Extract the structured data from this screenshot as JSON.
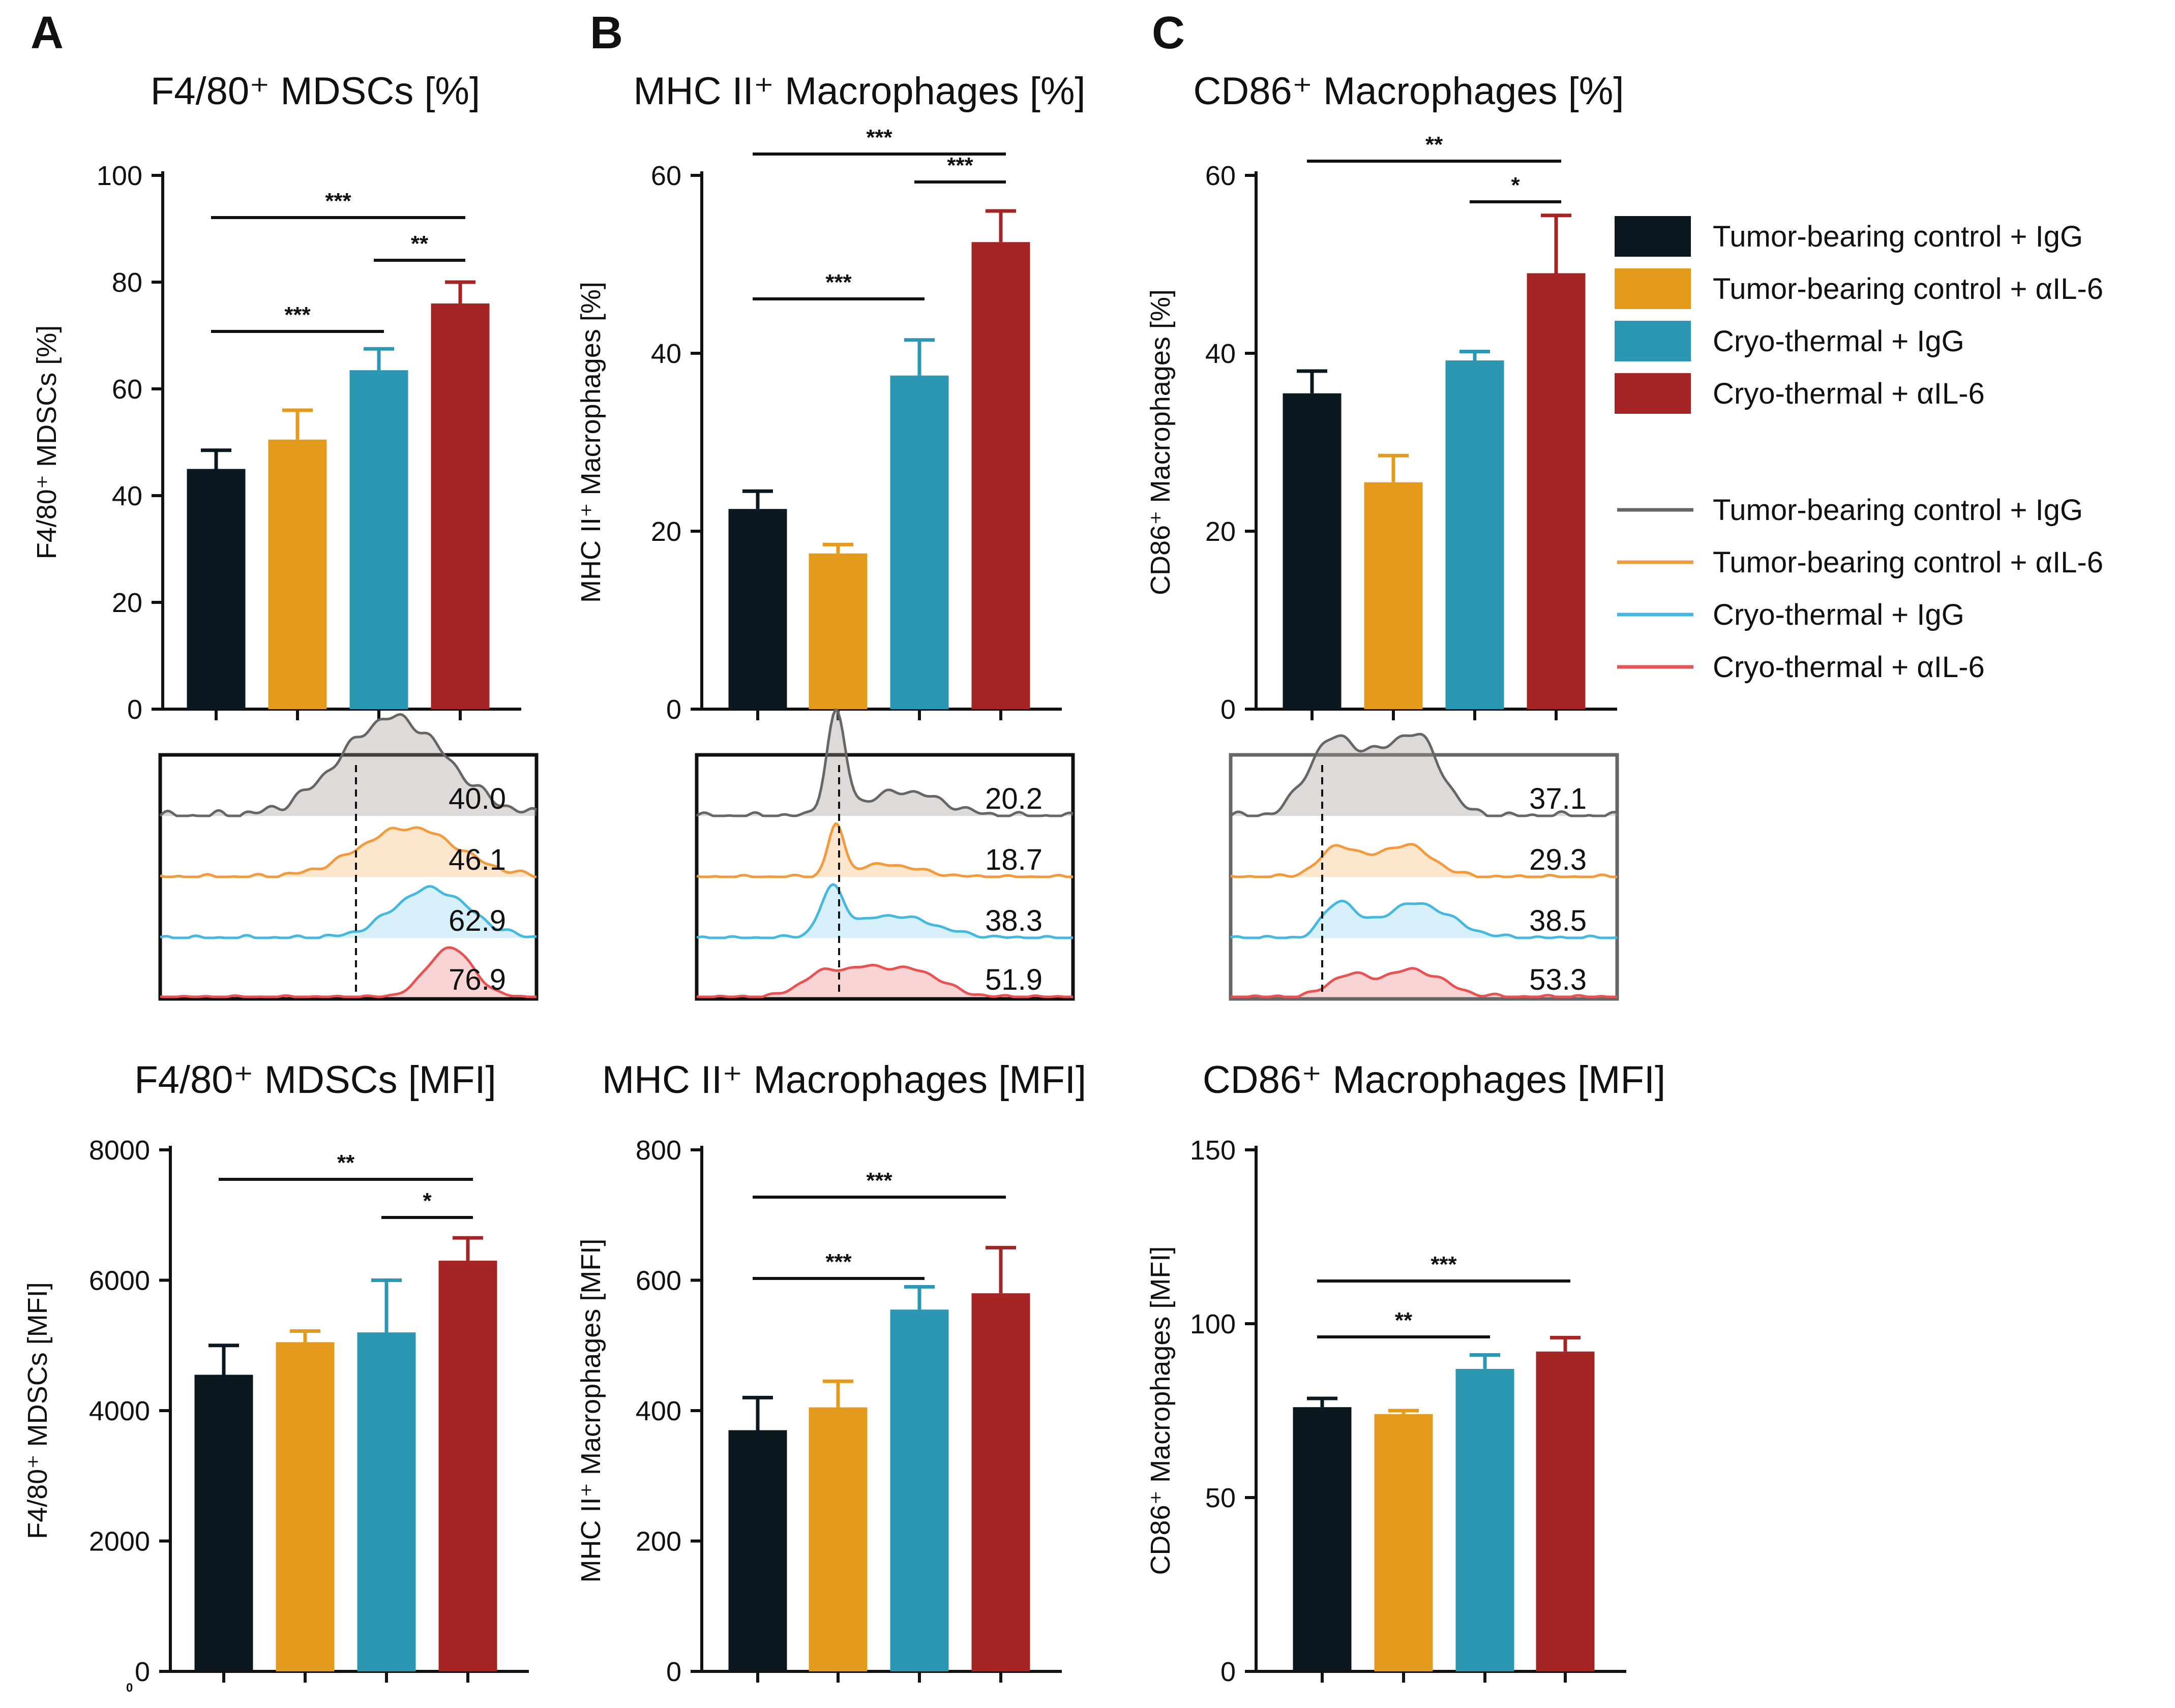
{
  "panel_labels": [
    "A",
    "B",
    "C"
  ],
  "colors": {
    "tb_igg": "#0b1820",
    "tb_il6": "#e49a1c",
    "ct_igg": "#2b97b3",
    "ct_il6": "#a52425",
    "h_tb_igg": "#666666",
    "h_tb_il6": "#f29a3c",
    "h_ct_igg": "#45b8e0",
    "h_ct_il6": "#e85252"
  },
  "legend": {
    "bars": [
      {
        "label": "Tumor-bearing control + IgG",
        "color": "#0b1820"
      },
      {
        "label": "Tumor-bearing control + αIL-6",
        "color": "#e49a1c"
      },
      {
        "label": "Cryo-thermal + IgG",
        "color": "#2b97b3"
      },
      {
        "label": "Cryo-thermal + αIL-6",
        "color": "#a52425"
      }
    ],
    "lines": [
      {
        "label": "Tumor-bearing control + IgG",
        "color": "#666666"
      },
      {
        "label": "Tumor-bearing control + αIL-6",
        "color": "#f29a3c"
      },
      {
        "label": "Cryo-thermal + IgG",
        "color": "#45b8e0"
      },
      {
        "label": "Cryo-thermal + αIL-6",
        "color": "#e85252"
      }
    ]
  },
  "chart_data": [
    {
      "type": "bar",
      "id": "A_pct",
      "title": "F4/80⁺ MDSCs [%]",
      "ylabel": "F4/80⁺ MDSCs [%]",
      "ylim": [
        0,
        100
      ],
      "yticks": [
        0,
        20,
        40,
        60,
        80,
        100
      ],
      "categories": [
        "Tumor-bearing control + IgG",
        "Tumor-bearing control + αIL-6",
        "Cryo-thermal + IgG",
        "Cryo-thermal + αIL-6"
      ],
      "values": [
        45,
        50.5,
        63.5,
        76
      ],
      "errors": [
        3.5,
        5.5,
        4,
        4
      ],
      "significance": [
        {
          "from": 0,
          "to": 3,
          "label": "***"
        },
        {
          "from": 2,
          "to": 3,
          "label": "**"
        },
        {
          "from": 0,
          "to": 2,
          "label": "***"
        }
      ]
    },
    {
      "type": "bar",
      "id": "B_pct",
      "title": "MHC II⁺ Macrophages [%]",
      "ylabel": "MHC II⁺ Macrophages [%]",
      "ylim": [
        0,
        60
      ],
      "yticks": [
        0,
        20,
        40,
        60
      ],
      "categories": [
        "Tumor-bearing control + IgG",
        "Tumor-bearing control + αIL-6",
        "Cryo-thermal + IgG",
        "Cryo-thermal + αIL-6"
      ],
      "values": [
        22.5,
        17.5,
        37.5,
        52.5
      ],
      "errors": [
        2,
        1,
        4,
        3.5
      ],
      "significance": [
        {
          "from": 0,
          "to": 3,
          "label": "***"
        },
        {
          "from": 2,
          "to": 3,
          "label": "***"
        },
        {
          "from": 0,
          "to": 2,
          "label": "***"
        }
      ]
    },
    {
      "type": "bar",
      "id": "C_pct",
      "title": "CD86⁺ Macrophages [%]",
      "ylabel": "CD86⁺ Macrophages [%]",
      "ylim": [
        0,
        60
      ],
      "yticks": [
        0,
        20,
        40,
        60
      ],
      "categories": [
        "Tumor-bearing control + IgG",
        "Tumor-bearing control + αIL-6",
        "Cryo-thermal + IgG",
        "Cryo-thermal + αIL-6"
      ],
      "values": [
        35.5,
        25.5,
        39.2,
        49
      ],
      "errors": [
        2.5,
        3,
        1,
        6.5
      ],
      "significance": [
        {
          "from": 0,
          "to": 3,
          "label": "**"
        },
        {
          "from": 2,
          "to": 3,
          "label": "*"
        }
      ]
    },
    {
      "type": "bar",
      "id": "A_mfi",
      "title": "F4/80⁺ MDSCs [MFI]",
      "ylabel": "F4/80⁺ MDSCs [MFI]",
      "ylim": [
        0,
        8000
      ],
      "yticks": [
        0,
        2000,
        4000,
        6000,
        8000
      ],
      "categories": [
        "Tumor-bearing control + IgG",
        "Tumor-bearing control + αIL-6",
        "Cryo-thermal + IgG",
        "Cryo-thermal + αIL-6"
      ],
      "values": [
        4550,
        5050,
        5200,
        6300
      ],
      "errors": [
        450,
        170,
        800,
        350
      ],
      "significance": [
        {
          "from": 0,
          "to": 3,
          "label": "**"
        },
        {
          "from": 2,
          "to": 3,
          "label": "*"
        }
      ]
    },
    {
      "type": "bar",
      "id": "B_mfi",
      "title": "MHC II⁺ Macrophages [MFI]",
      "ylabel": "MHC II⁺ Macrophages [MFI]",
      "ylim": [
        0,
        800
      ],
      "yticks": [
        0,
        200,
        400,
        600,
        800
      ],
      "categories": [
        "Tumor-bearing control + IgG",
        "Tumor-bearing control + αIL-6",
        "Cryo-thermal + IgG",
        "Cryo-thermal + αIL-6"
      ],
      "values": [
        370,
        405,
        555,
        580
      ],
      "errors": [
        50,
        40,
        35,
        70
      ],
      "significance": [
        {
          "from": 0,
          "to": 3,
          "label": "***"
        },
        {
          "from": 0,
          "to": 2,
          "label": "***"
        }
      ]
    },
    {
      "type": "bar",
      "id": "C_mfi",
      "title": "CD86⁺ Macrophages [MFI]",
      "ylabel": "CD86⁺ Macrophages [MFI]",
      "ylim": [
        0,
        150
      ],
      "yticks": [
        0,
        50,
        100,
        150
      ],
      "categories": [
        "Tumor-bearing control + IgG",
        "Tumor-bearing control + αIL-6",
        "Cryo-thermal + IgG",
        "Cryo-thermal + αIL-6"
      ],
      "values": [
        76,
        74,
        87,
        92
      ],
      "errors": [
        2.5,
        1,
        4,
        4
      ],
      "significance": [
        {
          "from": 0,
          "to": 3,
          "label": "***"
        },
        {
          "from": 0,
          "to": 2,
          "label": "**"
        }
      ]
    }
  ],
  "histograms": [
    {
      "id": "A_hist",
      "values": [
        "40.0",
        "46.1",
        "62.9",
        "76.9"
      ]
    },
    {
      "id": "B_hist",
      "values": [
        "20.2",
        "18.7",
        "38.3",
        "51.9"
      ]
    },
    {
      "id": "C_hist",
      "values": [
        "37.1",
        "29.3",
        "38.5",
        "53.3"
      ]
    }
  ],
  "stray_label": "0"
}
